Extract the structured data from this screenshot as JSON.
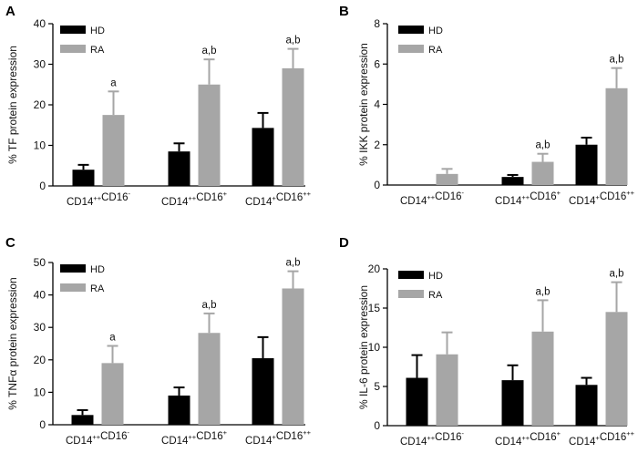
{
  "colors": {
    "HD": "#000000",
    "RA": "#a6a6a6",
    "axis": "#000000"
  },
  "chart_data": [
    {
      "panel_label": "A",
      "type": "bar",
      "ylabel": "% TF protein expression",
      "ylim": [
        0,
        40
      ],
      "yticks": [
        0,
        10,
        20,
        30,
        40
      ],
      "categories": [
        "CD14++CD16-",
        "CD14++CD16+",
        "CD14+CD16++"
      ],
      "category_parts": [
        [
          [
            "CD14",
            "++"
          ],
          [
            "CD16",
            "-"
          ]
        ],
        [
          [
            "CD14",
            "++"
          ],
          [
            "CD16",
            "+"
          ]
        ],
        [
          [
            "CD14",
            "+"
          ],
          [
            "CD16",
            "++"
          ]
        ]
      ],
      "legend": [
        "HD",
        "RA"
      ],
      "series": [
        {
          "name": "HD",
          "values": [
            4,
            8.5,
            14.3
          ],
          "errors": [
            1.2,
            2,
            3.7
          ],
          "annotations": [
            "",
            "",
            ""
          ]
        },
        {
          "name": "RA",
          "values": [
            17.5,
            25,
            29
          ],
          "errors": [
            5.8,
            6.2,
            4.8
          ],
          "annotations": [
            "a",
            "a,b",
            "a,b"
          ]
        }
      ]
    },
    {
      "panel_label": "B",
      "type": "bar",
      "ylabel": "% IKK protein expression",
      "ylim": [
        0,
        8
      ],
      "yticks": [
        0,
        2,
        4,
        6,
        8
      ],
      "categories": [
        "CD14++CD16-",
        "CD14++CD16+",
        "CD14+CD16++"
      ],
      "category_parts": [
        [
          [
            "CD14",
            "++"
          ],
          [
            "CD16",
            "-"
          ]
        ],
        [
          [
            "CD14",
            "++"
          ],
          [
            "CD16",
            "+"
          ]
        ],
        [
          [
            "CD14",
            "+"
          ],
          [
            "CD16",
            "++"
          ]
        ]
      ],
      "legend": [
        "HD",
        "RA"
      ],
      "series": [
        {
          "name": "HD",
          "values": [
            0,
            0.4,
            2
          ],
          "errors": [
            0,
            0.1,
            0.35
          ],
          "annotations": [
            "",
            "",
            ""
          ]
        },
        {
          "name": "RA",
          "values": [
            0.55,
            1.15,
            4.8
          ],
          "errors": [
            0.25,
            0.4,
            1
          ],
          "annotations": [
            "",
            "a,b",
            "a,b"
          ]
        }
      ]
    },
    {
      "panel_label": "C",
      "type": "bar",
      "ylabel": "% TNFα protein expression",
      "ylim": [
        0,
        50
      ],
      "yticks": [
        0,
        10,
        20,
        30,
        40,
        50
      ],
      "categories": [
        "CD14++CD16-",
        "CD14++CD16+",
        "CD14+CD16++"
      ],
      "category_parts": [
        [
          [
            "CD14",
            "++"
          ],
          [
            "CD16",
            "-"
          ]
        ],
        [
          [
            "CD14",
            "++"
          ],
          [
            "CD16",
            "+"
          ]
        ],
        [
          [
            "CD14",
            "+"
          ],
          [
            "CD16",
            "++"
          ]
        ]
      ],
      "legend": [
        "HD",
        "RA"
      ],
      "series": [
        {
          "name": "HD",
          "values": [
            3,
            9,
            20.5
          ],
          "errors": [
            1.5,
            2.5,
            6.5
          ],
          "annotations": [
            "",
            "",
            ""
          ]
        },
        {
          "name": "RA",
          "values": [
            19,
            28.3,
            42
          ],
          "errors": [
            5.3,
            6,
            5.3
          ],
          "annotations": [
            "a",
            "a,b",
            "a,b"
          ]
        }
      ]
    },
    {
      "panel_label": "D",
      "type": "bar",
      "ylabel": "% IL-6 protein expression",
      "ylim": [
        0,
        20
      ],
      "yticks": [
        0,
        5,
        10,
        15,
        20
      ],
      "categories": [
        "CD14++CD16-",
        "CD14++CD16+",
        "CD14+CD16++"
      ],
      "category_parts": [
        [
          [
            "CD14",
            "++"
          ],
          [
            "CD16",
            "-"
          ]
        ],
        [
          [
            "CD14",
            "++"
          ],
          [
            "CD16",
            "+"
          ]
        ],
        [
          [
            "CD14",
            "+"
          ],
          [
            "CD16",
            "++"
          ]
        ]
      ],
      "legend": [
        "HD",
        "RA"
      ],
      "series": [
        {
          "name": "HD",
          "values": [
            6.1,
            5.8,
            5.2
          ],
          "errors": [
            2.9,
            1.9,
            0.9
          ],
          "annotations": [
            "",
            "",
            ""
          ]
        },
        {
          "name": "RA",
          "values": [
            9.1,
            12,
            14.5
          ],
          "errors": [
            2.8,
            4,
            3.8
          ],
          "annotations": [
            "",
            "a,b",
            "a,b"
          ]
        }
      ]
    }
  ]
}
